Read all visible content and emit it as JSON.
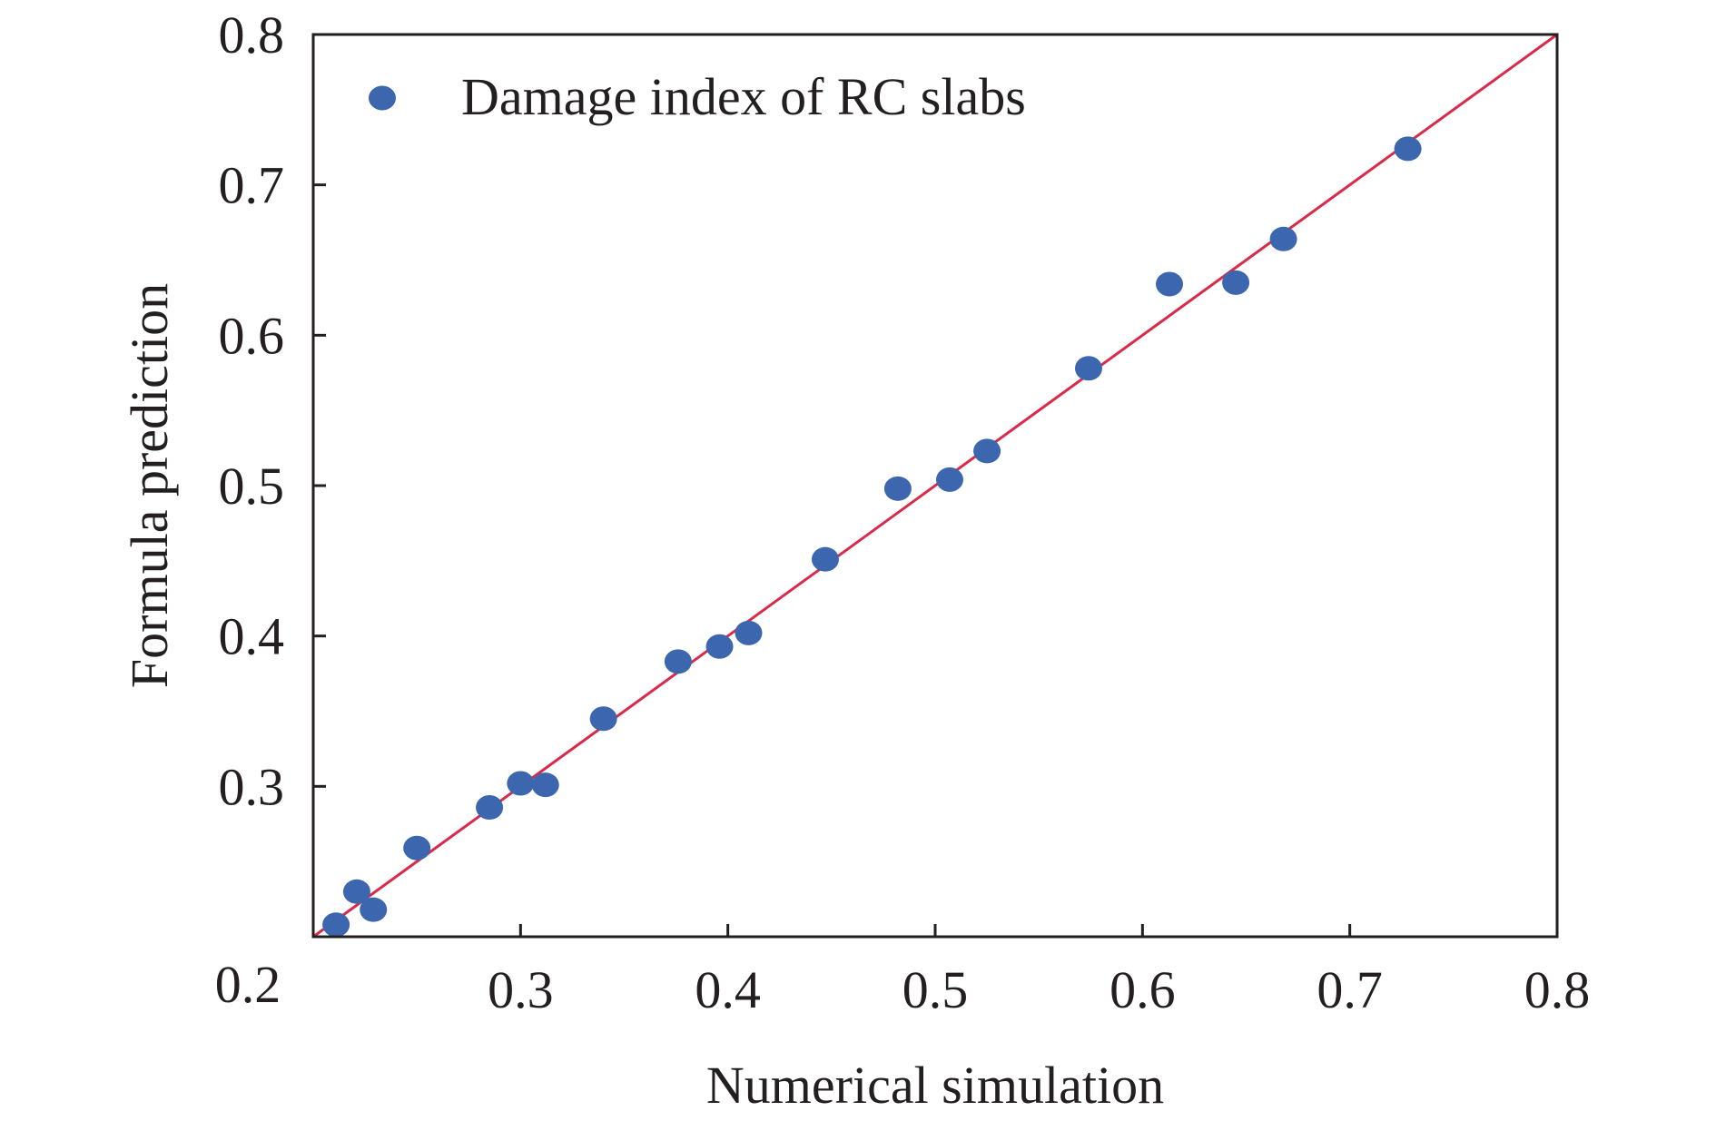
{
  "chart_data": {
    "type": "scatter",
    "xlabel": "Numerical simulation",
    "ylabel": "Formula prediction",
    "xlim": [
      0.2,
      0.8
    ],
    "ylim": [
      0.2,
      0.8
    ],
    "x_ticks": [
      0.3,
      0.4,
      0.5,
      0.6,
      0.7,
      0.8
    ],
    "y_ticks": [
      0.3,
      0.4,
      0.5,
      0.6,
      0.7,
      0.8
    ],
    "origin_label": "0.2",
    "tick_labels": {
      "x": [
        "0.3",
        "0.4",
        "0.5",
        "0.6",
        "0.7",
        "0.8"
      ],
      "y": [
        "0.3",
        "0.4",
        "0.5",
        "0.6",
        "0.7",
        "0.8"
      ]
    },
    "grid": false,
    "legend_position": "top-left",
    "series": [
      {
        "name": "Damage index of RC slabs",
        "color": "#3c66ad",
        "points": [
          [
            0.211,
            0.208
          ],
          [
            0.221,
            0.23
          ],
          [
            0.229,
            0.218
          ],
          [
            0.25,
            0.259
          ],
          [
            0.285,
            0.286
          ],
          [
            0.3,
            0.302
          ],
          [
            0.312,
            0.301
          ],
          [
            0.34,
            0.345
          ],
          [
            0.376,
            0.383
          ],
          [
            0.396,
            0.393
          ],
          [
            0.41,
            0.402
          ],
          [
            0.447,
            0.451
          ],
          [
            0.482,
            0.498
          ],
          [
            0.507,
            0.504
          ],
          [
            0.525,
            0.523
          ],
          [
            0.574,
            0.578
          ],
          [
            0.613,
            0.634
          ],
          [
            0.645,
            0.635
          ],
          [
            0.668,
            0.664
          ],
          [
            0.728,
            0.724
          ]
        ]
      }
    ],
    "reference_line": {
      "from": [
        0.2,
        0.2
      ],
      "to": [
        0.8,
        0.8
      ],
      "color": "#d92a4a"
    }
  }
}
